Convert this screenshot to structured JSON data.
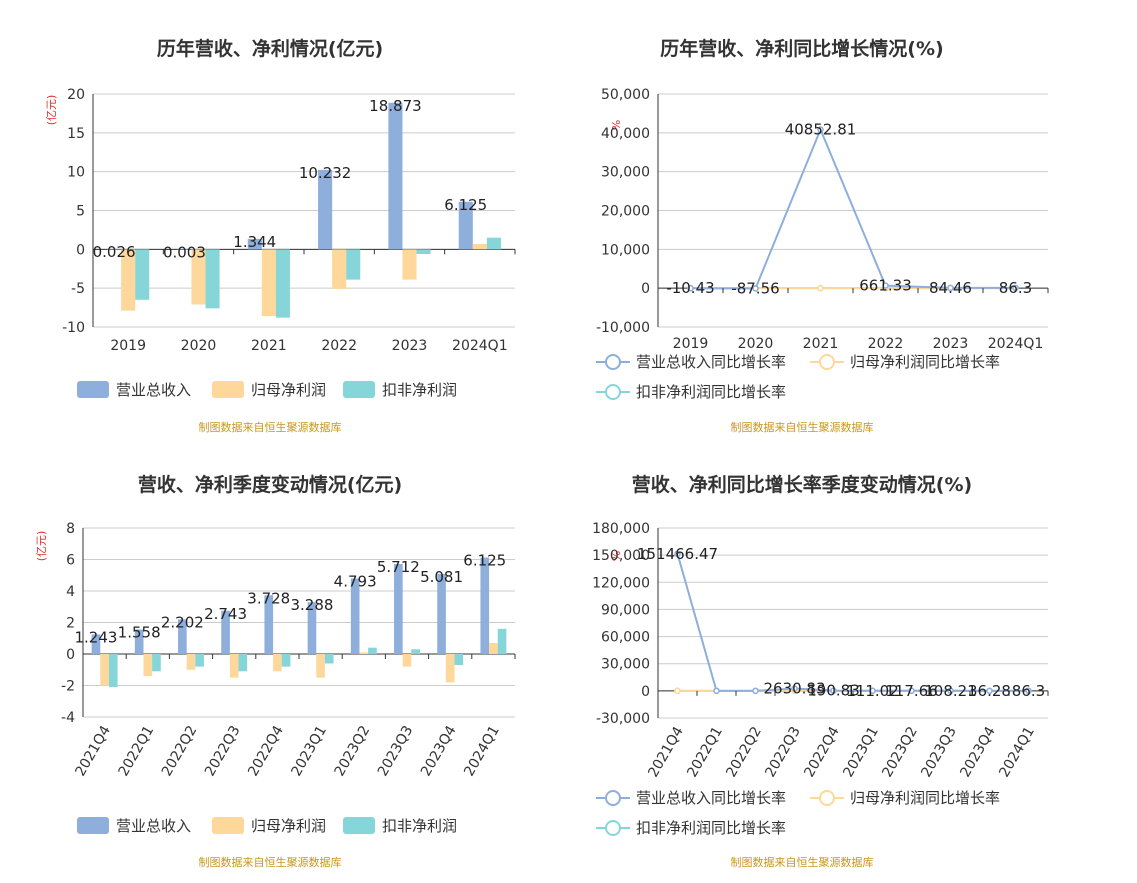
{
  "colors": {
    "revenue": "#8eaedb",
    "net_profit": "#fdd89a",
    "deducted_profit": "#86d6d9",
    "revenue_line": "#8eaedb",
    "net_line": "#fdd89a",
    "deducted_line": "#86d6d9"
  },
  "legend_bar": [
    "营业总收入",
    "归母净利润",
    "扣非净利润"
  ],
  "legend_line": [
    "营业总收入同比增长率",
    "归母净利润同比增长率",
    "扣非净利润同比增长率"
  ],
  "source_note": "制图数据来自恒生聚源数据库",
  "chart_data": [
    {
      "type": "bar",
      "title": "历年营收、净利情况(亿元)",
      "ylabel": "(亿元)",
      "categories": [
        "2019",
        "2020",
        "2021",
        "2022",
        "2023",
        "2024Q1"
      ],
      "ylim": [
        -10,
        20
      ],
      "yticks": [
        -10,
        -5,
        0,
        5,
        10,
        15,
        20
      ],
      "series": [
        {
          "name": "营业总收入",
          "values": [
            0.026,
            0.003,
            1.344,
            10.232,
            18.873,
            6.125
          ],
          "labels": [
            "0.026",
            "0.003",
            "1.344",
            "10.232",
            "18.873",
            "6.125"
          ]
        },
        {
          "name": "归母净利润",
          "values": [
            -7.9,
            -7.1,
            -8.6,
            -5.1,
            -3.9,
            0.7
          ]
        },
        {
          "name": "扣非净利润",
          "values": [
            -6.5,
            -7.6,
            -8.8,
            -3.9,
            -0.6,
            1.5
          ]
        }
      ]
    },
    {
      "type": "line",
      "title": "历年营收、净利同比增长情况(%)",
      "ylabel": "%",
      "categories": [
        "2019",
        "2020",
        "2021",
        "2022",
        "2023",
        "2024Q1"
      ],
      "ylim": [
        -10000,
        50000
      ],
      "yticks": [
        -10000,
        0,
        10000,
        20000,
        30000,
        40000,
        50000
      ],
      "ytick_labels": [
        "-10,000",
        "0",
        "10,000",
        "20,000",
        "30,000",
        "40,000",
        "50,000"
      ],
      "series": [
        {
          "name": "营业总收入同比增长率",
          "values": [
            -10.43,
            -87.56,
            40852.81,
            661.33,
            84.46,
            86.3
          ],
          "labels": [
            "-10.43",
            "-87.56",
            "40852.81",
            "661.33",
            "84.46",
            "86.3"
          ]
        },
        {
          "name": "归母净利润同比增长率",
          "values": [
            0,
            0,
            0,
            0,
            0,
            0
          ]
        },
        {
          "name": "扣非净利润同比增长率",
          "values": [
            0,
            0,
            0,
            0,
            0,
            0
          ]
        }
      ]
    },
    {
      "type": "bar",
      "title": "营收、净利季度变动情况(亿元)",
      "ylabel": "(亿元)",
      "categories": [
        "2021Q4",
        "2022Q1",
        "2022Q2",
        "2022Q3",
        "2022Q4",
        "2023Q1",
        "2023Q2",
        "2023Q3",
        "2023Q4",
        "2024Q1"
      ],
      "ylim": [
        -4,
        8
      ],
      "yticks": [
        -4,
        -2,
        0,
        2,
        4,
        6,
        8
      ],
      "series": [
        {
          "name": "营业总收入",
          "values": [
            1.243,
            1.558,
            2.202,
            2.743,
            3.728,
            3.288,
            4.793,
            5.712,
            5.081,
            6.125
          ],
          "labels": [
            "1.243",
            "1.558",
            "2.202",
            "2.743",
            "3.728",
            "3.288",
            "4.793",
            "5.712",
            "5.081",
            "6.125"
          ]
        },
        {
          "name": "归母净利润",
          "values": [
            -2.0,
            -1.4,
            -1.0,
            -1.5,
            -1.1,
            -1.5,
            0.1,
            -0.8,
            -1.8,
            0.7
          ]
        },
        {
          "name": "扣非净利润",
          "values": [
            -2.1,
            -1.1,
            -0.8,
            -1.1,
            -0.8,
            -0.6,
            0.4,
            0.3,
            -0.7,
            1.6
          ]
        }
      ]
    },
    {
      "type": "line",
      "title": "营收、净利同比增长率季度变动情况(%)",
      "ylabel": "%",
      "categories": [
        "2021Q4",
        "2022Q1",
        "2022Q2",
        "2022Q3",
        "2022Q4",
        "2023Q1",
        "2023Q2",
        "2023Q3",
        "2023Q4",
        "2024Q1"
      ],
      "ylim": [
        -30000,
        180000
      ],
      "yticks": [
        -30000,
        0,
        30000,
        60000,
        90000,
        120000,
        150000,
        180000
      ],
      "ytick_labels": [
        "-30,000",
        "0",
        "30,000",
        "60,000",
        "90,000",
        "120,000",
        "150,000",
        "180,000"
      ],
      "series": [
        {
          "name": "营业总收入同比增长率",
          "values": [
            151466.47,
            0,
            0,
            2630.83,
            190.83,
            111.02,
            117.66,
            108.21,
            36.28,
            86.3
          ],
          "labels": [
            "151466.47",
            "",
            "",
            "2630.83",
            "190.83",
            "111.02",
            "117.66",
            "108.21",
            "36.28",
            "86.3"
          ]
        },
        {
          "name": "归母净利润同比增长率",
          "values": [
            0,
            0,
            0,
            0,
            0,
            0,
            0,
            0,
            0,
            0
          ]
        },
        {
          "name": "扣非净利润同比增长率",
          "values": [
            0,
            0,
            0,
            0,
            0,
            0,
            0,
            0,
            0,
            0
          ]
        }
      ]
    }
  ]
}
